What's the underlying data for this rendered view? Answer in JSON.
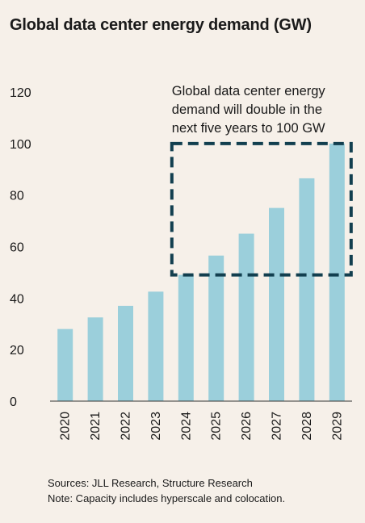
{
  "title": "Global data center energy demand (GW)",
  "chart_data": {
    "type": "bar",
    "title": "Global data center energy demand (GW)",
    "categories": [
      "2020",
      "2021",
      "2022",
      "2023",
      "2024",
      "2025",
      "2026",
      "2027",
      "2028",
      "2029"
    ],
    "values": [
      28,
      32.5,
      37,
      42.5,
      49,
      56.5,
      65,
      75,
      86.5,
      100
    ],
    "ylim": [
      0,
      120
    ],
    "yticks": [
      "0",
      "20",
      "40",
      "60",
      "80",
      "100",
      "120"
    ],
    "xlabel": "",
    "ylabel": "",
    "grid": false,
    "bar_color": "#9bcfdb",
    "annotation": {
      "lines": [
        "Global data center energy",
        "demand will double in the",
        "next five years to 100 GW"
      ],
      "box_color": "#123f4f",
      "box_x_from": "2024",
      "box_x_to": "2029",
      "box_y_from": 49,
      "box_y_to": 100
    }
  },
  "footer": {
    "sources": "Sources: JLL Research, Structure Research",
    "note": "Note: Capacity includes hyperscale and colocation."
  }
}
